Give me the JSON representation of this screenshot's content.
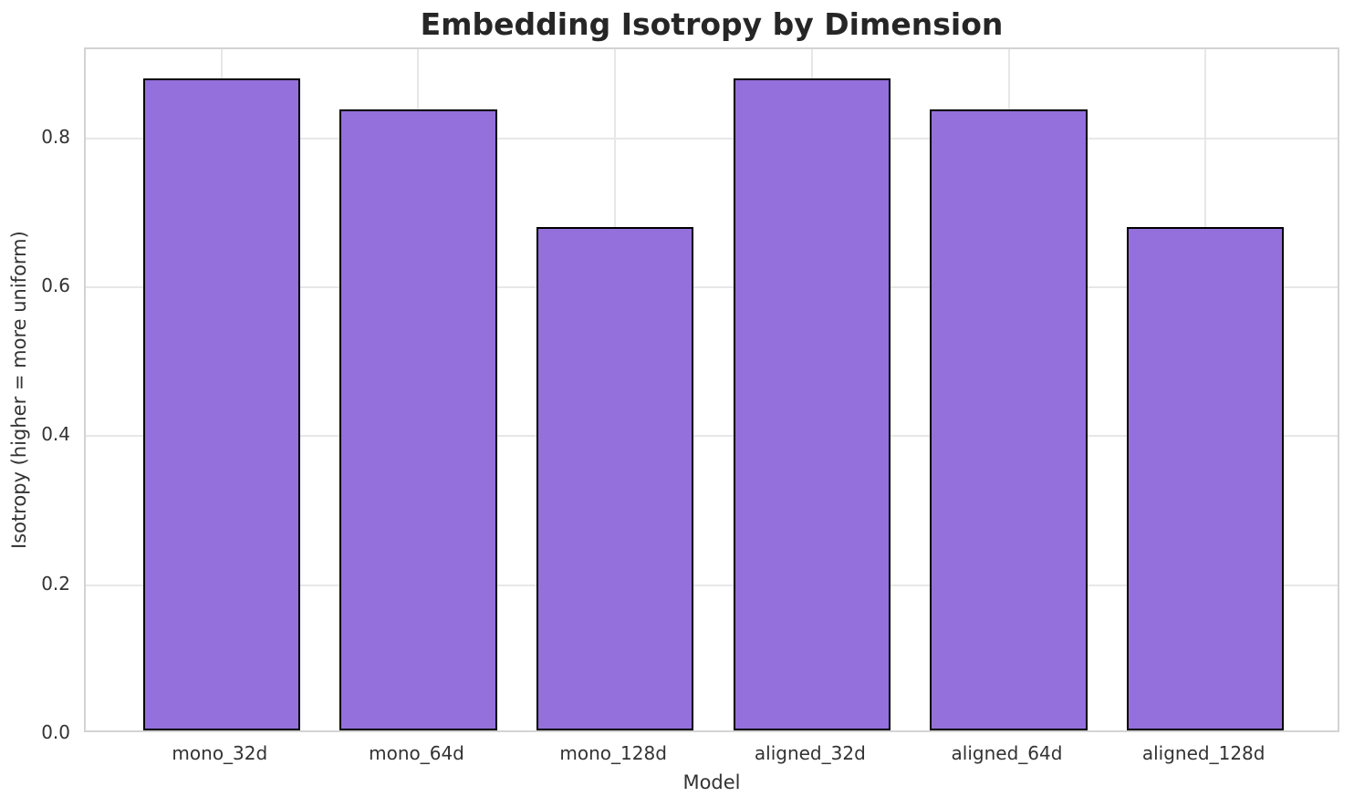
{
  "chart_data": {
    "type": "bar",
    "title": "Embedding Isotropy by Dimension",
    "xlabel": "Model",
    "ylabel": "Isotropy (higher = more uniform)",
    "categories": [
      "mono_32d",
      "mono_64d",
      "mono_128d",
      "aligned_32d",
      "aligned_64d",
      "aligned_128d"
    ],
    "values": [
      0.876,
      0.834,
      0.676,
      0.876,
      0.834,
      0.676
    ],
    "ytick_labels": [
      "0.0",
      "0.2",
      "0.4",
      "0.6",
      "0.8"
    ],
    "ytick_values": [
      0.0,
      0.2,
      0.4,
      0.6,
      0.8
    ],
    "ylim": [
      0,
      0.92
    ],
    "grid": true,
    "legend": "none",
    "colors": {
      "bar_fill": "#9370DB",
      "bar_edge": "#000000",
      "grid": "#e7e7e7",
      "spine": "#d3d3d3",
      "title_text": "#262626",
      "tick_text": "#333333",
      "background": "#ffffff"
    }
  }
}
